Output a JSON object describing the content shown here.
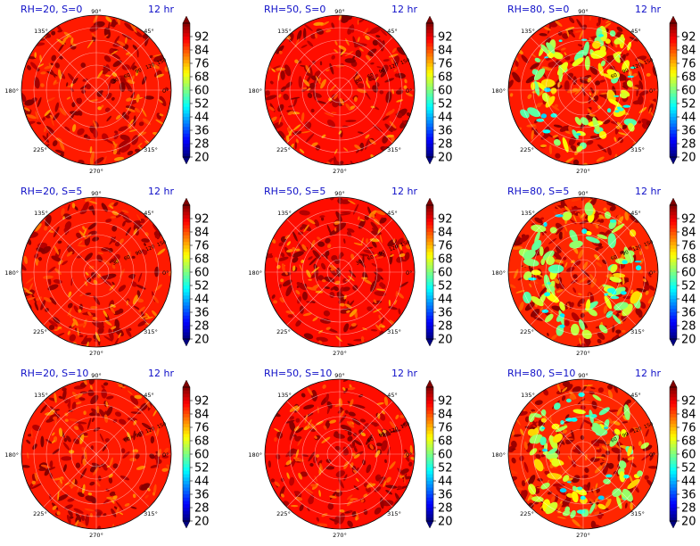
{
  "chart_data": [
    {
      "type": "heatmap",
      "projection": "polar",
      "title": "RH=20, S=0",
      "time": "12 hr",
      "angle_ticks": [
        "0°",
        "45°",
        "90°",
        "135°",
        "180°",
        "225°",
        "270°",
        "315°"
      ],
      "radial_labels": [
        "30",
        "60",
        "90",
        "120",
        "150"
      ],
      "colorbar": {
        "min": 20,
        "max": 100,
        "ticks": [
          "20",
          "28",
          "36",
          "44",
          "52",
          "60",
          "68",
          "76",
          "84",
          "92"
        ],
        "colormap": "jet",
        "extend": "both"
      },
      "field": {
        "base": 88,
        "dry_patches": 0
      }
    },
    {
      "type": "heatmap",
      "projection": "polar",
      "title": "RH=50, S=0",
      "time": "12 hr",
      "angle_ticks": [
        "0°",
        "45°",
        "90°",
        "135°",
        "180°",
        "225°",
        "270°",
        "315°"
      ],
      "radial_labels": [
        "30",
        "60",
        "90",
        "120",
        "150"
      ],
      "colorbar": {
        "min": 20,
        "max": 100,
        "ticks": [
          "20",
          "28",
          "36",
          "44",
          "52",
          "60",
          "68",
          "76",
          "84",
          "92"
        ],
        "colormap": "jet",
        "extend": "both"
      },
      "field": {
        "base": 89,
        "dry_patches": 0
      }
    },
    {
      "type": "heatmap",
      "projection": "polar",
      "title": "RH=80, S=0",
      "time": "12 hr",
      "angle_ticks": [
        "0°",
        "45°",
        "90°",
        "135°",
        "180°",
        "225°",
        "270°",
        "315°"
      ],
      "radial_labels": [
        "60",
        "90",
        "120",
        "150"
      ],
      "colorbar": {
        "min": 20,
        "max": 100,
        "ticks": [
          "20",
          "28",
          "36",
          "44",
          "52",
          "60",
          "68",
          "76",
          "84",
          "92"
        ],
        "colormap": "jet",
        "extend": "both"
      },
      "field": {
        "base": 88,
        "dry_patches": 1
      }
    },
    {
      "type": "heatmap",
      "projection": "polar",
      "title": "RH=20, S=5",
      "time": "12 hr",
      "angle_ticks": [
        "0°",
        "45°",
        "90°",
        "135°",
        "180°",
        "225°",
        "270°",
        "315°"
      ],
      "radial_labels": [
        "30",
        "60",
        "90",
        "120",
        "150"
      ],
      "colorbar": {
        "min": 20,
        "max": 100,
        "ticks": [
          "20",
          "28",
          "36",
          "44",
          "52",
          "60",
          "68",
          "76",
          "84",
          "92"
        ],
        "colormap": "jet",
        "extend": "both"
      },
      "field": {
        "base": 88,
        "dry_patches": 0
      }
    },
    {
      "type": "heatmap",
      "projection": "polar",
      "title": "RH=50, S=5",
      "time": "12 hr",
      "angle_ticks": [
        "0°",
        "45°",
        "90°",
        "135°",
        "180°",
        "225°",
        "270°",
        "315°"
      ],
      "radial_labels": [
        "30",
        "60",
        "90",
        "120",
        "150"
      ],
      "colorbar": {
        "min": 20,
        "max": 100,
        "ticks": [
          "20",
          "28",
          "36",
          "44",
          "52",
          "60",
          "68",
          "76",
          "84",
          "92"
        ],
        "colormap": "jet",
        "extend": "both"
      },
      "field": {
        "base": 89,
        "dry_patches": 0
      }
    },
    {
      "type": "heatmap",
      "projection": "polar",
      "title": "RH=80, S=5",
      "time": "12 hr",
      "angle_ticks": [
        "0°",
        "45°",
        "90°",
        "135°",
        "180°",
        "225°",
        "270°",
        "315°"
      ],
      "radial_labels": [
        "60",
        "90",
        "120",
        "150"
      ],
      "colorbar": {
        "min": 20,
        "max": 100,
        "ticks": [
          "20",
          "28",
          "36",
          "44",
          "52",
          "60",
          "68",
          "76",
          "84",
          "92"
        ],
        "colormap": "jet",
        "extend": "both"
      },
      "field": {
        "base": 87,
        "dry_patches": 1
      }
    },
    {
      "type": "heatmap",
      "projection": "polar",
      "title": "RH=20, S=10",
      "time": "12 hr",
      "angle_ticks": [
        "0°",
        "45°",
        "90°",
        "135°",
        "180°",
        "225°",
        "270°",
        "315°"
      ],
      "radial_labels": [
        "60",
        "90",
        "120",
        "150"
      ],
      "colorbar": {
        "min": 20,
        "max": 100,
        "ticks": [
          "20",
          "28",
          "36",
          "44",
          "52",
          "60",
          "68",
          "76",
          "84",
          "92"
        ],
        "colormap": "jet",
        "extend": "both"
      },
      "field": {
        "base": 88,
        "dry_patches": 0
      }
    },
    {
      "type": "heatmap",
      "projection": "polar",
      "title": "RH=50, S=10",
      "time": "12 hr",
      "angle_ticks": [
        "0°",
        "45°",
        "90°",
        "135°",
        "180°",
        "225°",
        "270°",
        "315°"
      ],
      "radial_labels": [
        "60",
        "90",
        "120",
        "150"
      ],
      "colorbar": {
        "min": 20,
        "max": 100,
        "ticks": [
          "20",
          "28",
          "36",
          "44",
          "52",
          "60",
          "68",
          "76",
          "84",
          "92"
        ],
        "colormap": "jet",
        "extend": "both"
      },
      "field": {
        "base": 89,
        "dry_patches": 0
      }
    },
    {
      "type": "heatmap",
      "projection": "polar",
      "title": "RH=80, S=10",
      "time": "12 hr",
      "angle_ticks": [
        "0°",
        "45°",
        "90°",
        "135°",
        "180°",
        "225°",
        "270°",
        "315°"
      ],
      "radial_labels": [
        "60",
        "90",
        "120",
        "150"
      ],
      "colorbar": {
        "min": 20,
        "max": 100,
        "ticks": [
          "20",
          "28",
          "36",
          "44",
          "52",
          "60",
          "68",
          "76",
          "84",
          "92"
        ],
        "colormap": "jet",
        "extend": "both"
      },
      "field": {
        "base": 87,
        "dry_patches": 1
      }
    }
  ]
}
